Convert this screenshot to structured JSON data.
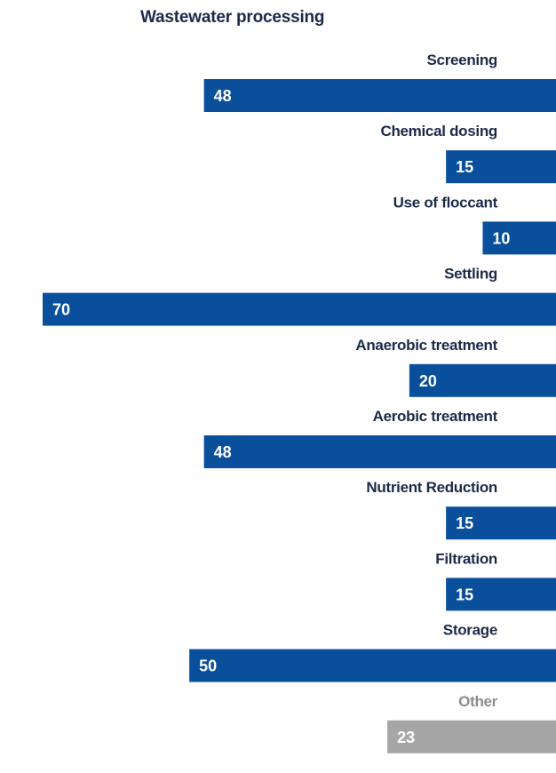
{
  "chart_data": {
    "type": "bar",
    "orientation": "horizontal",
    "title": "Wastewater processing",
    "categories": [
      "Screening",
      "Chemical dosing",
      "Use of floccant",
      "Settling",
      "Anaerobic treatment",
      "Aerobic treatment",
      "Nutrient Reduction",
      "Filtration",
      "Storage",
      "Other"
    ],
    "values": [
      48,
      15,
      10,
      70,
      20,
      48,
      15,
      15,
      50,
      23
    ],
    "value_labels": [
      "48",
      "15",
      "10",
      "70",
      "20",
      "48",
      "15",
      "15",
      "50",
      "23"
    ],
    "bar_colors": [
      "#0a4f9c",
      "#0a4f9c",
      "#0a4f9c",
      "#0a4f9c",
      "#0a4f9c",
      "#0a4f9c",
      "#0a4f9c",
      "#0a4f9c",
      "#0a4f9c",
      "#a6a6a6"
    ],
    "label_colors": [
      "#1b2a4a",
      "#1b2a4a",
      "#1b2a4a",
      "#1b2a4a",
      "#1b2a4a",
      "#1b2a4a",
      "#1b2a4a",
      "#1b2a4a",
      "#1b2a4a",
      "#8c8c8c"
    ],
    "bar_direction": "right-aligned",
    "xlim": [
      0,
      70
    ],
    "grid": false,
    "legend": "none"
  },
  "colors": {
    "primary": "#0a4f9c",
    "other": "#a6a6a6",
    "title": "#1b2a4a"
  }
}
